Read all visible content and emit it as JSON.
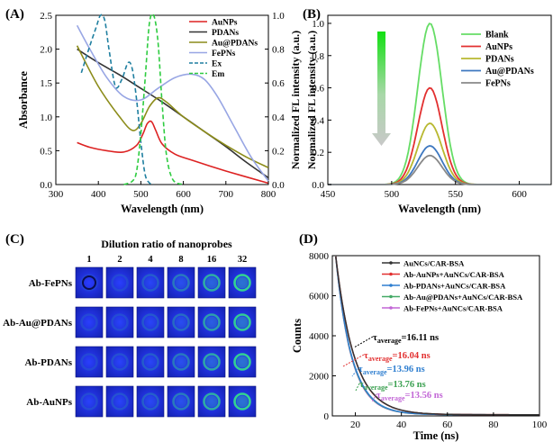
{
  "chart_data": [
    {
      "panel": "(A)",
      "type": "line",
      "xlabel": "Wavelength (nm)",
      "ylabel_left": "Absorbance",
      "ylabel_right": "Normalized FL intensity (a.u.)",
      "xlim": [
        300,
        800
      ],
      "ylim_left": [
        0,
        2.5
      ],
      "ylim_right": [
        0,
        1.0
      ],
      "x_ticks": [
        "300",
        "400",
        "500",
        "600",
        "700",
        "800"
      ],
      "y_ticks_left": [
        "0.0",
        "0.5",
        "1.0",
        "1.5",
        "2.0",
        "2.5"
      ],
      "y_ticks_right": [
        "0.0",
        "0.2",
        "0.4",
        "0.6",
        "0.8",
        "1.0"
      ],
      "legend_position": "top-right",
      "series": [
        {
          "name": "AuNPs",
          "axis": "left",
          "color": "#dd2222",
          "dash": false,
          "x": [
            350,
            380,
            420,
            460,
            490,
            505,
            515,
            525,
            535,
            550,
            580,
            620,
            700,
            800
          ],
          "y": [
            0.62,
            0.55,
            0.5,
            0.48,
            0.58,
            0.75,
            0.9,
            0.93,
            0.8,
            0.6,
            0.45,
            0.36,
            0.2,
            0.02
          ]
        },
        {
          "name": "PDANs",
          "axis": "left",
          "color": "#333333",
          "dash": false,
          "x": [
            350,
            400,
            450,
            500,
            550,
            600,
            650,
            700,
            750,
            800
          ],
          "y": [
            2.0,
            1.8,
            1.62,
            1.42,
            1.22,
            1.0,
            0.78,
            0.56,
            0.32,
            0.1
          ]
        },
        {
          "name": "Au@PDANs",
          "axis": "left",
          "color": "#8c8c1a",
          "dash": false,
          "x": [
            350,
            400,
            450,
            480,
            500,
            520,
            540,
            560,
            600,
            650,
            700,
            750,
            800
          ],
          "y": [
            2.05,
            1.45,
            1.0,
            0.8,
            0.9,
            1.15,
            1.28,
            1.22,
            1.0,
            0.78,
            0.58,
            0.4,
            0.25
          ]
        },
        {
          "name": "FePNs",
          "axis": "left",
          "color": "#98a6e4",
          "dash": false,
          "x": [
            350,
            380,
            420,
            460,
            500,
            540,
            580,
            620,
            650,
            680,
            720,
            760,
            800
          ],
          "y": [
            2.35,
            2.0,
            1.58,
            1.3,
            1.25,
            1.42,
            1.58,
            1.63,
            1.55,
            1.3,
            0.85,
            0.4,
            0.05
          ]
        },
        {
          "name": "Ex",
          "axis": "right",
          "color": "#1f7fa0",
          "dash": true,
          "x": [
            360,
            380,
            395,
            405,
            415,
            425,
            440,
            455,
            470,
            480,
            490,
            500,
            510,
            520,
            530
          ],
          "y": [
            0.66,
            0.82,
            0.93,
            1.0,
            0.97,
            0.8,
            0.58,
            0.62,
            0.72,
            0.68,
            0.5,
            0.25,
            0.06,
            0.01,
            0.0
          ]
        },
        {
          "name": "Em",
          "axis": "right",
          "color": "#2ecc40",
          "dash": true,
          "x": [
            460,
            480,
            490,
            500,
            510,
            520,
            530,
            540,
            550,
            560,
            575,
            600
          ],
          "y": [
            0.0,
            0.02,
            0.08,
            0.3,
            0.62,
            0.95,
            1.0,
            0.85,
            0.48,
            0.18,
            0.03,
            0.0
          ]
        }
      ]
    },
    {
      "panel": "(B)",
      "type": "line",
      "xlabel": "Wavelength (nm)",
      "ylabel": "Normalized FL intensity (a.u.)",
      "xlim": [
        450,
        625
      ],
      "ylim": [
        0,
        1.05
      ],
      "x_ticks": [
        "450",
        "500",
        "550",
        "600"
      ],
      "y_ticks": [
        "0.0",
        "0.2",
        "0.4",
        "0.6",
        "0.8",
        "1.0"
      ],
      "legend_position": "top-right",
      "center_wavelength": 530,
      "peak_width_nm": 9.5,
      "series": [
        {
          "name": "Blank",
          "color": "#66dd66",
          "peak": 1.0
        },
        {
          "name": "AuNPs",
          "color": "#e23030",
          "peak": 0.6
        },
        {
          "name": "PDANs",
          "color": "#b8b830",
          "peak": 0.38
        },
        {
          "name": "Au@PDANs",
          "color": "#3e78c0",
          "peak": 0.24
        },
        {
          "name": "FePNs",
          "color": "#888888",
          "peak": 0.18
        }
      ]
    },
    {
      "panel": "(D)",
      "type": "line",
      "xlabel": "Time (ns)",
      "ylabel": "Counts",
      "xlim": [
        10,
        100
      ],
      "ylim": [
        0,
        8000
      ],
      "x_ticks": [
        "20",
        "40",
        "60",
        "80",
        "100"
      ],
      "y_ticks": [
        "0",
        "2000",
        "4000",
        "6000",
        "8000"
      ],
      "legend_position": "top-right",
      "series": [
        {
          "name": "AuNCs/CAR-BSA",
          "color": "#333333",
          "tau": 16.11
        },
        {
          "name": "Ab-AuNPs+AuNCs/CAR-BSA",
          "color": "#e23030",
          "tau": 16.04
        },
        {
          "name": "Ab-PDANs+AuNCs/CAR-BSA",
          "color": "#2f7fd0",
          "tau": 13.96
        },
        {
          "name": "Ab-Au@PDANs+AuNCs/CAR-BSA",
          "color": "#44aa66",
          "tau": 13.76
        },
        {
          "name": "Ab-FePNs+AuNCs/CAR-BSA",
          "color": "#c266d6",
          "tau": 13.56
        }
      ],
      "annotations": [
        {
          "prefix": "τ",
          "sub": "average",
          "text": "=16.11 ns",
          "color": "#000000"
        },
        {
          "prefix": "τ",
          "sub": "average",
          "text": "=16.04 ns",
          "color": "#e23030"
        },
        {
          "prefix": "τ",
          "sub": "average",
          "text": "=13.96 ns",
          "color": "#2f7fd0"
        },
        {
          "prefix": "τ",
          "sub": "average",
          "text": "=13.76 ns",
          "color": "#3aa050"
        },
        {
          "prefix": "τ",
          "sub": "average",
          "text": "=13.56 ns",
          "color": "#c266d6"
        }
      ]
    }
  ],
  "panel_c": {
    "label": "(C)",
    "title": "Dilution ratio of nanoprobes",
    "columns": [
      "1",
      "2",
      "4",
      "8",
      "16",
      "32"
    ],
    "rows": [
      {
        "label": "Ab-FePNs",
        "glow": [
          0.0,
          0.05,
          0.18,
          0.35,
          0.7,
          0.95
        ]
      },
      {
        "label": "Ab-Au@PDANs",
        "glow": [
          0.05,
          0.08,
          0.15,
          0.28,
          0.6,
          0.9
        ]
      },
      {
        "label": "Ab-PDANs",
        "glow": [
          0.05,
          0.1,
          0.18,
          0.35,
          0.65,
          0.92
        ]
      },
      {
        "label": "Ab-AuNPs",
        "glow": [
          0.08,
          0.12,
          0.2,
          0.38,
          0.7,
          0.95
        ]
      }
    ],
    "colors": {
      "well_bg": "#1a2bd0",
      "glow": "#34e08a"
    }
  }
}
